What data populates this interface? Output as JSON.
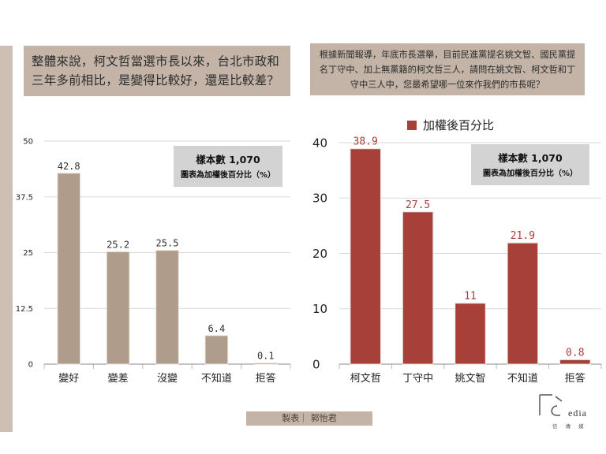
{
  "questions": {
    "left": "整體來說，柯文哲當選市長以來，台北市政和三年多前相比，是變得比較好，還是比較差？",
    "right": "根據新聞報導，年底市長選舉，目前民進黨提名姚文智、國民黨提名丁守中、加上無黨籍的柯文哲三人，請問在姚文智、柯文哲和丁守中三人中，您最希望哪一位來作我們的市長呢？"
  },
  "credit": "製表｜ 郭怡君",
  "logo": {
    "mark": "TC",
    "word": "edia",
    "sub": "信 傳 媒"
  },
  "chart_data": [
    {
      "type": "bar",
      "categories": [
        "變好",
        "變差",
        "沒變",
        "不知道",
        "拒答"
      ],
      "values": [
        42.8,
        25.2,
        25.5,
        6.4,
        0.1
      ],
      "value_labels": [
        "42.8",
        "25.2",
        "25.5",
        "6.4",
        "0.1"
      ],
      "yticks": [
        "0",
        "12.5",
        "25",
        "37.5",
        "50"
      ],
      "ylim": [
        0,
        50
      ],
      "note_title": "樣本數 1,070",
      "note_sub": "圖表為加權後百分比（%）",
      "bar_color": "#b09c8b",
      "label_color": "#333333",
      "grid": true
    },
    {
      "type": "bar",
      "categories": [
        "柯文哲",
        "丁守中",
        "姚文智",
        "不知道",
        "拒答"
      ],
      "values": [
        38.9,
        27.5,
        11,
        21.9,
        0.8
      ],
      "value_labels": [
        "38.9",
        "27.5",
        "11",
        "21.9",
        "0.8"
      ],
      "yticks": [
        "0",
        "10",
        "20",
        "30",
        "40"
      ],
      "ylim": [
        0,
        40
      ],
      "legend": "加權後百分比",
      "note_title": "樣本數 1,070",
      "note_sub": "圖表為加權後百分比（%）",
      "bar_color": "#a8403a",
      "label_color": "#a8403a",
      "grid": true
    }
  ]
}
